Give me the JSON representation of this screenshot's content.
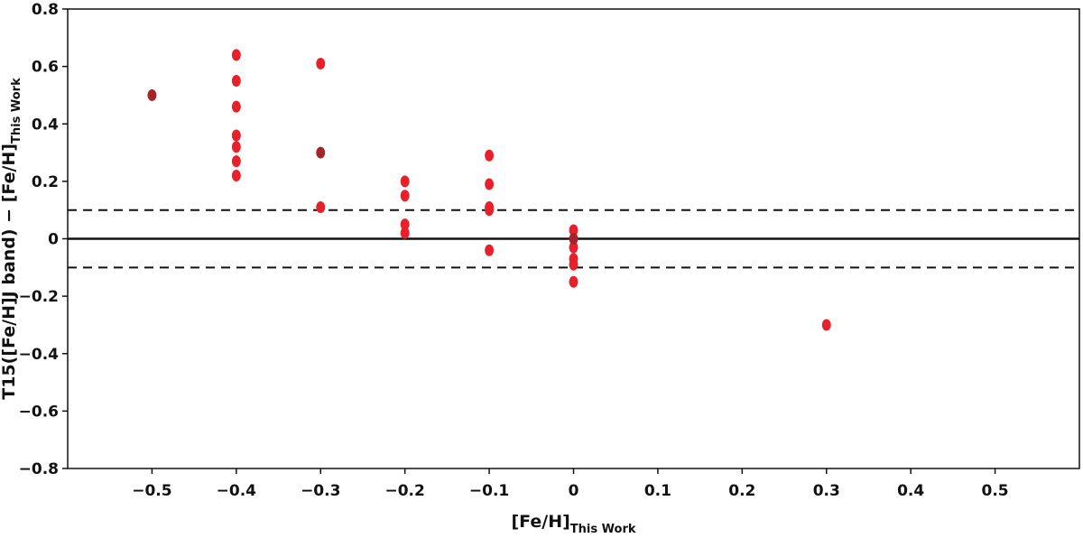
{
  "chart_data": {
    "type": "scatter",
    "title": "",
    "xlabel": {
      "main": "[Fe/H]",
      "sub": "This Work"
    },
    "ylabel": {
      "main": "T15([Fe/H]J band) − [Fe/H]",
      "sub": "This Work"
    },
    "xlim": [
      -0.6,
      0.6
    ],
    "ylim": [
      -0.8,
      0.8
    ],
    "x_ticks": [
      -0.5,
      -0.4,
      -0.3,
      -0.2,
      -0.1,
      0,
      0.1,
      0.2,
      0.3,
      0.4,
      0.5
    ],
    "x_tick_labels": [
      "−0.5",
      "−0.4",
      "−0.3",
      "−0.2",
      "−0.1",
      "0",
      "0.1",
      "0.2",
      "0.3",
      "0.4",
      "0.5"
    ],
    "y_ticks": [
      0.8,
      0.6,
      0.4,
      0.2,
      0,
      -0.2,
      -0.4,
      -0.6,
      -0.8
    ],
    "y_tick_labels": [
      "0.8",
      "0.6",
      "0.4",
      "0.2",
      "0",
      "−0.2",
      "−0.4",
      "−0.6",
      "−0.8"
    ],
    "reference_lines": [
      {
        "y": 0.0,
        "style": "solid"
      },
      {
        "y": 0.1,
        "style": "dashed"
      },
      {
        "y": -0.1,
        "style": "dashed"
      }
    ],
    "series": [
      {
        "color": "#e8202a",
        "points": [
          {
            "x": -0.4,
            "y": 0.64
          },
          {
            "x": -0.4,
            "y": 0.55
          },
          {
            "x": -0.4,
            "y": 0.46
          },
          {
            "x": -0.4,
            "y": 0.36
          },
          {
            "x": -0.4,
            "y": 0.32
          },
          {
            "x": -0.4,
            "y": 0.27
          },
          {
            "x": -0.4,
            "y": 0.22
          },
          {
            "x": -0.3,
            "y": 0.61
          },
          {
            "x": -0.3,
            "y": 0.11
          },
          {
            "x": -0.2,
            "y": 0.2
          },
          {
            "x": -0.2,
            "y": 0.15
          },
          {
            "x": -0.2,
            "y": 0.05
          },
          {
            "x": -0.2,
            "y": 0.02
          },
          {
            "x": -0.1,
            "y": 0.29
          },
          {
            "x": -0.1,
            "y": 0.19
          },
          {
            "x": -0.1,
            "y": 0.11
          },
          {
            "x": -0.1,
            "y": 0.1
          },
          {
            "x": -0.1,
            "y": -0.04
          },
          {
            "x": 0.0,
            "y": 0.03
          },
          {
            "x": 0.0,
            "y": -0.03
          },
          {
            "x": 0.0,
            "y": -0.07
          },
          {
            "x": 0.0,
            "y": -0.09
          },
          {
            "x": 0.0,
            "y": -0.15
          },
          {
            "x": 0.3,
            "y": -0.3
          }
        ]
      },
      {
        "color": "#a5232a",
        "points": [
          {
            "x": -0.5,
            "y": 0.5
          },
          {
            "x": -0.3,
            "y": 0.3
          },
          {
            "x": 0.0,
            "y": 0.0
          }
        ]
      }
    ]
  }
}
